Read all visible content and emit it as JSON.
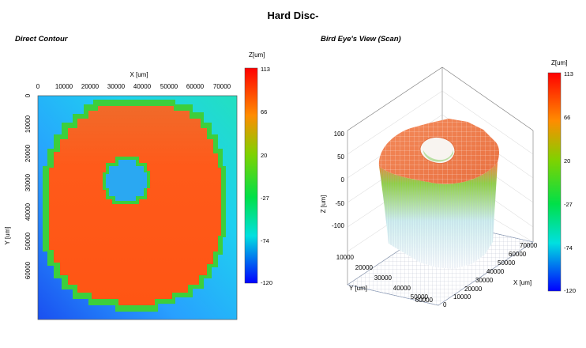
{
  "page": {
    "title": "Hard Disc-"
  },
  "chart_data": [
    {
      "type": "heatmap",
      "title": "Direct Contour",
      "xlabel": "X [um]",
      "ylabel": "Y [um]",
      "xlim": [
        0,
        75000
      ],
      "ylim": [
        0,
        65000
      ],
      "x_ticks": [
        "0",
        "10000",
        "20000",
        "30000",
        "40000",
        "50000",
        "60000",
        "70000"
      ],
      "y_ticks": [
        "0",
        "10000",
        "20000",
        "30000",
        "40000",
        "50000",
        "60000"
      ],
      "colorbar": {
        "label": "Z[um]",
        "ticks": [
          "113",
          "66",
          "20",
          "-27",
          "-74",
          "-120"
        ],
        "range": [
          -120,
          113
        ]
      },
      "description_values": {
        "disc_outer_diameter": 65000,
        "disc_inner_diameter": 16000,
        "center": [
          33000,
          33000
        ],
        "disc_height": 100,
        "background": -60,
        "corner_low": -120
      }
    },
    {
      "type": "surface3d",
      "title": "Bird Eye's View (Scan)",
      "xlabel": "X [um]",
      "ylabel": "Y [um]",
      "zlabel": "Z [um]",
      "x_ticks": [
        "0",
        "10000",
        "20000",
        "30000",
        "40000",
        "50000",
        "60000",
        "70000"
      ],
      "y_ticks": [
        "10000",
        "20000",
        "30000",
        "40000",
        "50000",
        "60000"
      ],
      "z_ticks": [
        "100",
        "50",
        "0",
        "-50",
        "-100"
      ],
      "colorbar": {
        "label": "Z[um]",
        "ticks": [
          "113",
          "66",
          "20",
          "-27",
          "-74",
          "-120"
        ],
        "range": [
          -120,
          113
        ]
      }
    }
  ]
}
